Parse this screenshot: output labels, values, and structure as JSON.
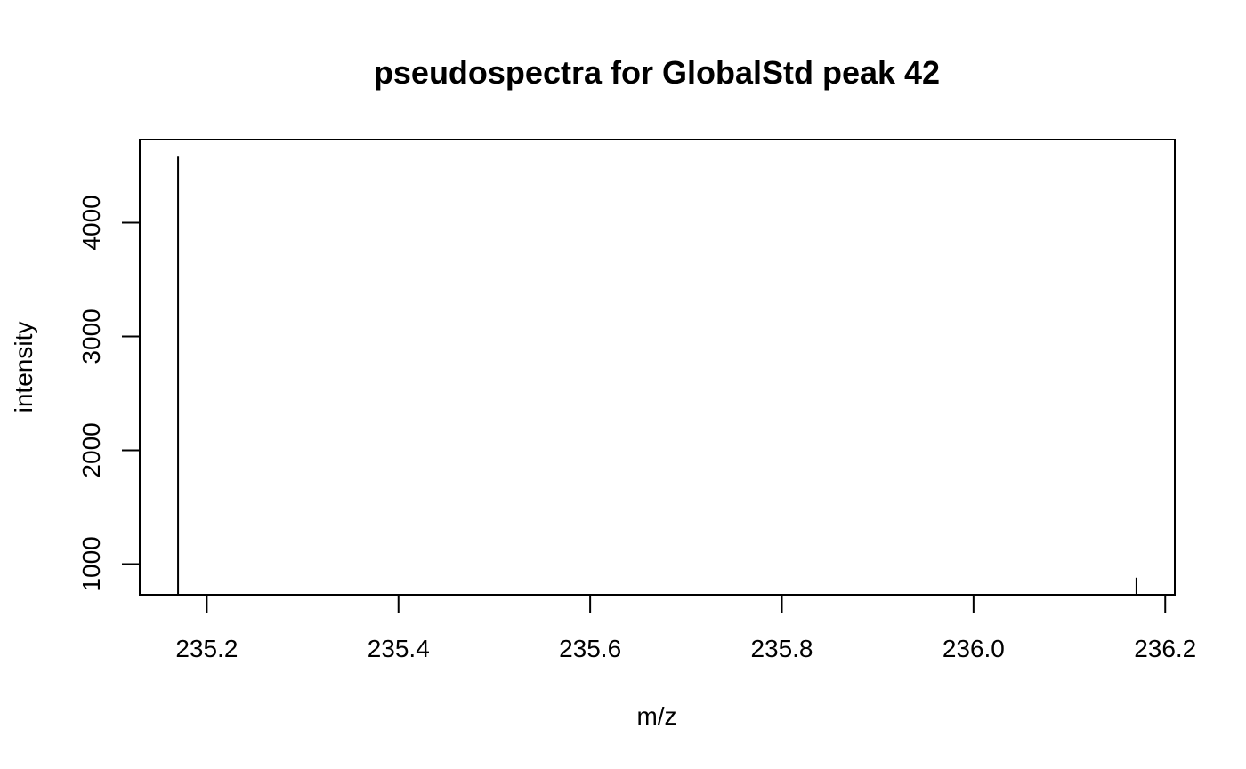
{
  "chart_data": {
    "type": "bar",
    "title": "pseudospectra for GlobalStd peak 42",
    "xlabel": "m/z",
    "ylabel": "intensity",
    "xlim": [
      235.13,
      236.21
    ],
    "ylim": [
      730,
      4730
    ],
    "x_ticks": [
      235.2,
      235.4,
      235.6,
      235.8,
      236.0,
      236.2
    ],
    "x_tick_labels": [
      "235.2",
      "235.4",
      "235.6",
      "235.8",
      "236.0",
      "236.2"
    ],
    "y_ticks": [
      1000,
      2000,
      3000,
      4000
    ],
    "y_tick_labels": [
      "1000",
      "2000",
      "3000",
      "4000"
    ],
    "peaks": [
      {
        "mz": 235.17,
        "intensity": 4580
      },
      {
        "mz": 236.17,
        "intensity": 880
      }
    ],
    "grid": false,
    "colors": {
      "line": "#000000",
      "background": "#ffffff"
    }
  }
}
